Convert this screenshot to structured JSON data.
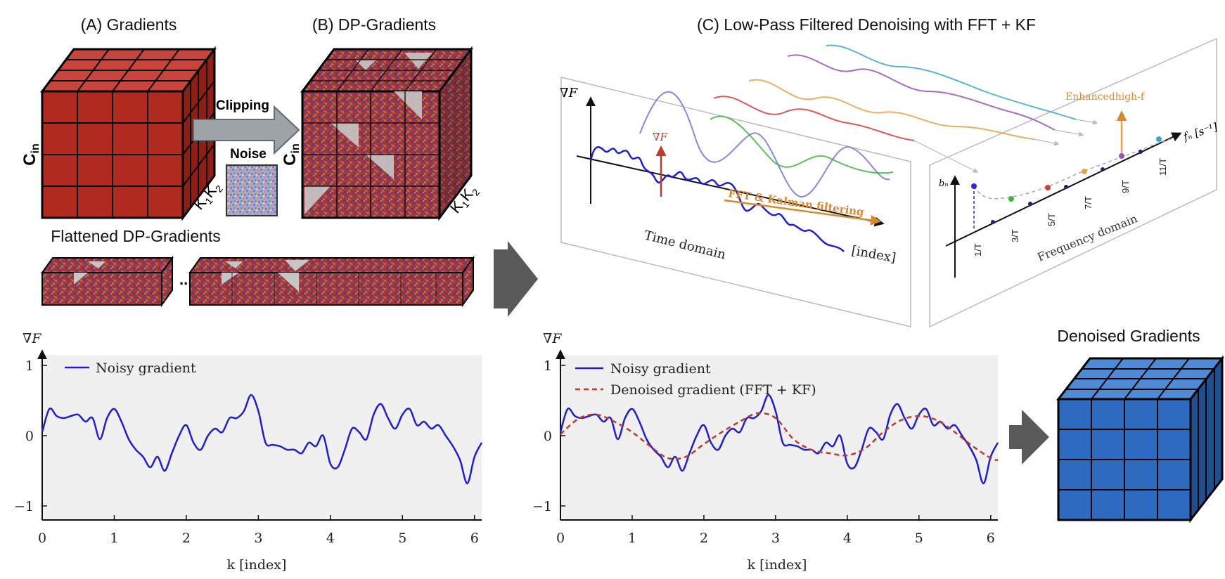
{
  "panels": {
    "a_title": "(A) Gradients",
    "b_title": "(B) DP-Gradients",
    "c_title": "(C) Low-Pass Filtered Denoising with FFT + KF",
    "flat_title": "Flattened DP-Gradients",
    "denoised_title": "Denoised Gradients"
  },
  "cube_labels": {
    "c_in": "C",
    "c_in_sub": "in",
    "k": "K",
    "k1_sub": "1",
    "k2_sub": "2"
  },
  "pipeline": {
    "clipping": "Clipping",
    "noise": "Noise",
    "ellipsis": "..."
  },
  "time_domain": {
    "y_label": "∇F",
    "arrow_label": "∇F",
    "fft_label": "FFT & Kalman filtering",
    "domain_label": "Time domain",
    "index_label": "[index]"
  },
  "freq_domain": {
    "b_label": "bₙ",
    "f_label": "fₙ [s⁻¹]",
    "enhanced_label": "Enhancedhigh-f",
    "domain_label": "Frequency domain",
    "tick_labels": [
      "1/T",
      "3/T",
      "5/T",
      "7/T",
      "9/T",
      "11/T"
    ]
  },
  "colors": {
    "red_cube": "#b12a1f",
    "blue_cube": "#2e6bc0",
    "noisy": "#1f1fcf",
    "denoised": "#c0392b",
    "orange": "#d98a2e",
    "arrow_grey": "#595959",
    "plot_bg": "#f0f0f0"
  },
  "chart_data": [
    {
      "type": "line",
      "ylabel": "∇F",
      "xlabel": "k [index]",
      "xlim": [
        0,
        6.1
      ],
      "ylim": [
        -1.2,
        1.15
      ],
      "x_ticks": [
        "0",
        "1",
        "2",
        "3",
        "4",
        "5",
        "6"
      ],
      "y_ticks": [
        "1",
        "0",
        "−1"
      ],
      "legend": [
        "Noisy gradient"
      ],
      "legend_position": "top-left",
      "series": [
        {
          "name": "Noisy gradient",
          "x": [
            0,
            0.1,
            0.2,
            0.3,
            0.4,
            0.5,
            0.6,
            0.7,
            0.8,
            0.9,
            1.0,
            1.1,
            1.2,
            1.3,
            1.4,
            1.5,
            1.6,
            1.7,
            1.8,
            1.9,
            2.0,
            2.1,
            2.2,
            2.3,
            2.4,
            2.5,
            2.6,
            2.7,
            2.8,
            2.9,
            3.0,
            3.1,
            3.2,
            3.3,
            3.4,
            3.5,
            3.6,
            3.7,
            3.8,
            3.9,
            4.0,
            4.1,
            4.2,
            4.3,
            4.4,
            4.5,
            4.6,
            4.7,
            4.8,
            4.9,
            5.0,
            5.1,
            5.2,
            5.3,
            5.4,
            5.5,
            5.6,
            5.7,
            5.8,
            5.9,
            6.0,
            6.1
          ],
          "y": [
            0.05,
            0.38,
            0.28,
            0.25,
            0.28,
            0.3,
            0.2,
            0.25,
            -0.05,
            0.25,
            0.38,
            0.2,
            -0.05,
            -0.2,
            -0.3,
            -0.45,
            -0.3,
            -0.5,
            -0.25,
            0.0,
            0.15,
            -0.1,
            -0.2,
            0.0,
            0.1,
            0.05,
            0.25,
            0.25,
            0.35,
            0.58,
            0.35,
            -0.1,
            -0.13,
            -0.15,
            -0.2,
            -0.2,
            -0.25,
            -0.1,
            -0.15,
            0.0,
            -0.4,
            -0.45,
            -0.2,
            0.1,
            0.05,
            -0.05,
            0.3,
            0.45,
            0.25,
            0.1,
            0.3,
            0.38,
            0.15,
            0.2,
            0.1,
            0.15,
            0.0,
            -0.15,
            -0.35,
            -0.68,
            -0.3,
            -0.1
          ]
        }
      ]
    },
    {
      "type": "line",
      "ylabel": "∇F",
      "xlabel": "k [index]",
      "xlim": [
        0,
        6.1
      ],
      "ylim": [
        -1.2,
        1.15
      ],
      "x_ticks": [
        "0",
        "1",
        "2",
        "3",
        "4",
        "5",
        "6"
      ],
      "y_ticks": [
        "1",
        "0",
        "−1"
      ],
      "legend": [
        "Noisy gradient",
        "Denoised gradient (FFT + KF)"
      ],
      "legend_position": "top-left",
      "series": [
        {
          "name": "Noisy gradient",
          "x": [
            0,
            0.1,
            0.2,
            0.3,
            0.4,
            0.5,
            0.6,
            0.7,
            0.8,
            0.9,
            1.0,
            1.1,
            1.2,
            1.3,
            1.4,
            1.5,
            1.6,
            1.7,
            1.8,
            1.9,
            2.0,
            2.1,
            2.2,
            2.3,
            2.4,
            2.5,
            2.6,
            2.7,
            2.8,
            2.9,
            3.0,
            3.1,
            3.2,
            3.3,
            3.4,
            3.5,
            3.6,
            3.7,
            3.8,
            3.9,
            4.0,
            4.1,
            4.2,
            4.3,
            4.4,
            4.5,
            4.6,
            4.7,
            4.8,
            4.9,
            5.0,
            5.1,
            5.2,
            5.3,
            5.4,
            5.5,
            5.6,
            5.7,
            5.8,
            5.9,
            6.0,
            6.1
          ],
          "y": [
            0.05,
            0.38,
            0.28,
            0.25,
            0.28,
            0.3,
            0.2,
            0.25,
            -0.05,
            0.25,
            0.38,
            0.2,
            -0.05,
            -0.2,
            -0.3,
            -0.45,
            -0.3,
            -0.5,
            -0.25,
            0.0,
            0.15,
            -0.1,
            -0.2,
            0.0,
            0.1,
            0.05,
            0.25,
            0.25,
            0.35,
            0.58,
            0.35,
            -0.1,
            -0.13,
            -0.15,
            -0.2,
            -0.2,
            -0.25,
            -0.1,
            -0.15,
            0.0,
            -0.4,
            -0.45,
            -0.2,
            0.1,
            0.05,
            -0.05,
            0.3,
            0.45,
            0.25,
            0.1,
            0.3,
            0.38,
            0.15,
            0.2,
            0.1,
            0.15,
            0.0,
            -0.15,
            -0.35,
            -0.68,
            -0.3,
            -0.1
          ]
        },
        {
          "name": "Denoised gradient (FFT + KF)",
          "x": [
            0,
            0.25,
            0.5,
            0.75,
            1.0,
            1.25,
            1.5,
            1.75,
            2.0,
            2.25,
            2.5,
            2.75,
            3.0,
            3.25,
            3.5,
            3.75,
            4.0,
            4.25,
            4.5,
            4.75,
            5.0,
            5.25,
            5.5,
            5.75,
            6.0,
            6.1
          ],
          "y": [
            0.02,
            0.24,
            0.3,
            0.2,
            0.05,
            -0.15,
            -0.32,
            -0.3,
            -0.12,
            0.05,
            0.2,
            0.32,
            0.25,
            -0.05,
            -0.2,
            -0.25,
            -0.28,
            -0.18,
            0.05,
            0.22,
            0.28,
            0.22,
            0.05,
            -0.15,
            -0.32,
            -0.35
          ]
        }
      ]
    }
  ]
}
